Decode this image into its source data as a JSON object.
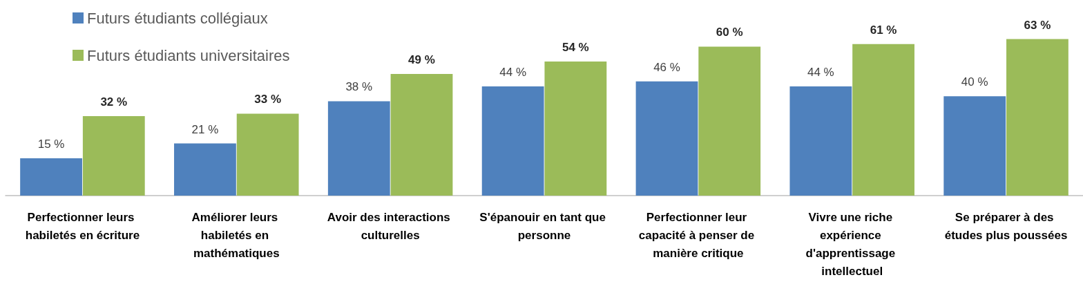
{
  "chart_data": {
    "type": "bar",
    "categories": [
      "Perfectionner leurs habiletés en écriture",
      "Améliorer leurs habiletés en mathématiques",
      "Avoir des interactions culturelles",
      "S'épanouir en tant que personne",
      "Perfectionner leur capacité à penser de manière critique",
      "Vivre une riche expérience d'apprentissage intellectuel",
      "Se préparer à des études plus poussées"
    ],
    "series": [
      {
        "name": "Futurs étudiants collégiaux",
        "color": "#4f81bd",
        "values": [
          15,
          21,
          38,
          44,
          46,
          44,
          40
        ],
        "value_labels": [
          "15 %",
          "21 %",
          "38 %",
          "44 %",
          "46 %",
          "44 %",
          "40 %"
        ]
      },
      {
        "name": "Futurs étudiants universitaires",
        "color": "#9bbb59",
        "values": [
          32,
          33,
          49,
          54,
          60,
          61,
          63
        ],
        "value_labels": [
          "32 %",
          "33 %",
          "49 %",
          "54 %",
          "60 %",
          "61 %",
          "63 %"
        ]
      }
    ],
    "legend": "top left"
  }
}
